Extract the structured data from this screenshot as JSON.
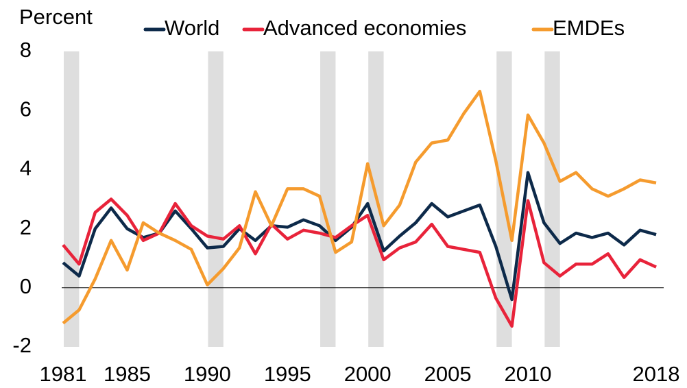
{
  "chart_data": {
    "type": "line",
    "y_axis_label": "Percent",
    "x": [
      1981,
      1982,
      1983,
      1984,
      1985,
      1986,
      1987,
      1988,
      1989,
      1990,
      1991,
      1992,
      1993,
      1994,
      1995,
      1996,
      1997,
      1998,
      1999,
      2000,
      2001,
      2002,
      2003,
      2004,
      2005,
      2006,
      2007,
      2008,
      2009,
      2010,
      2011,
      2012,
      2013,
      2014,
      2015,
      2016,
      2017,
      2018
    ],
    "series": [
      {
        "name": "World",
        "color": "#0d2a4a",
        "values": [
          0.85,
          0.4,
          2.0,
          2.7,
          2.0,
          1.7,
          1.85,
          2.6,
          2.0,
          1.35,
          1.4,
          2.0,
          1.6,
          2.1,
          2.05,
          2.3,
          2.1,
          1.6,
          2.05,
          2.85,
          1.25,
          1.75,
          2.2,
          2.85,
          2.4,
          2.6,
          2.8,
          1.4,
          -0.4,
          3.9,
          2.2,
          1.5,
          1.85,
          1.7,
          1.85,
          1.45,
          1.95,
          1.8
        ]
      },
      {
        "name": "Advanced economies",
        "color": "#e8233a",
        "values": [
          1.45,
          0.8,
          2.55,
          3.0,
          2.45,
          1.6,
          1.85,
          2.85,
          2.1,
          1.75,
          1.65,
          2.1,
          1.15,
          2.15,
          1.65,
          1.95,
          1.85,
          1.7,
          2.1,
          2.45,
          0.95,
          1.35,
          1.55,
          2.15,
          1.4,
          1.3,
          1.2,
          -0.35,
          -1.3,
          2.95,
          0.85,
          0.4,
          0.8,
          0.8,
          1.15,
          0.35,
          0.95,
          0.7
        ]
      },
      {
        "name": "EMDEs",
        "color": "#f59b2e",
        "values": [
          -1.2,
          -0.75,
          0.3,
          1.6,
          0.6,
          2.2,
          1.85,
          1.6,
          1.3,
          0.1,
          0.65,
          1.35,
          3.25,
          2.1,
          3.35,
          3.35,
          3.1,
          1.2,
          1.55,
          4.2,
          2.1,
          2.8,
          4.25,
          4.9,
          5.0,
          5.9,
          6.65,
          4.3,
          1.6,
          5.85,
          4.9,
          3.6,
          3.9,
          3.35,
          3.1,
          3.35,
          3.65,
          3.55
        ]
      }
    ],
    "shaded_years": [
      1981,
      1990,
      1997,
      2000,
      2008,
      2011
    ],
    "shade_color": "#dedede",
    "xlim": [
      1981,
      2018
    ],
    "xticks": [
      1981,
      1985,
      1990,
      1995,
      2000,
      2005,
      2010,
      2018
    ],
    "ylim": [
      -2,
      8
    ],
    "yticks": [
      -2,
      0,
      2,
      4,
      6,
      8
    ]
  }
}
